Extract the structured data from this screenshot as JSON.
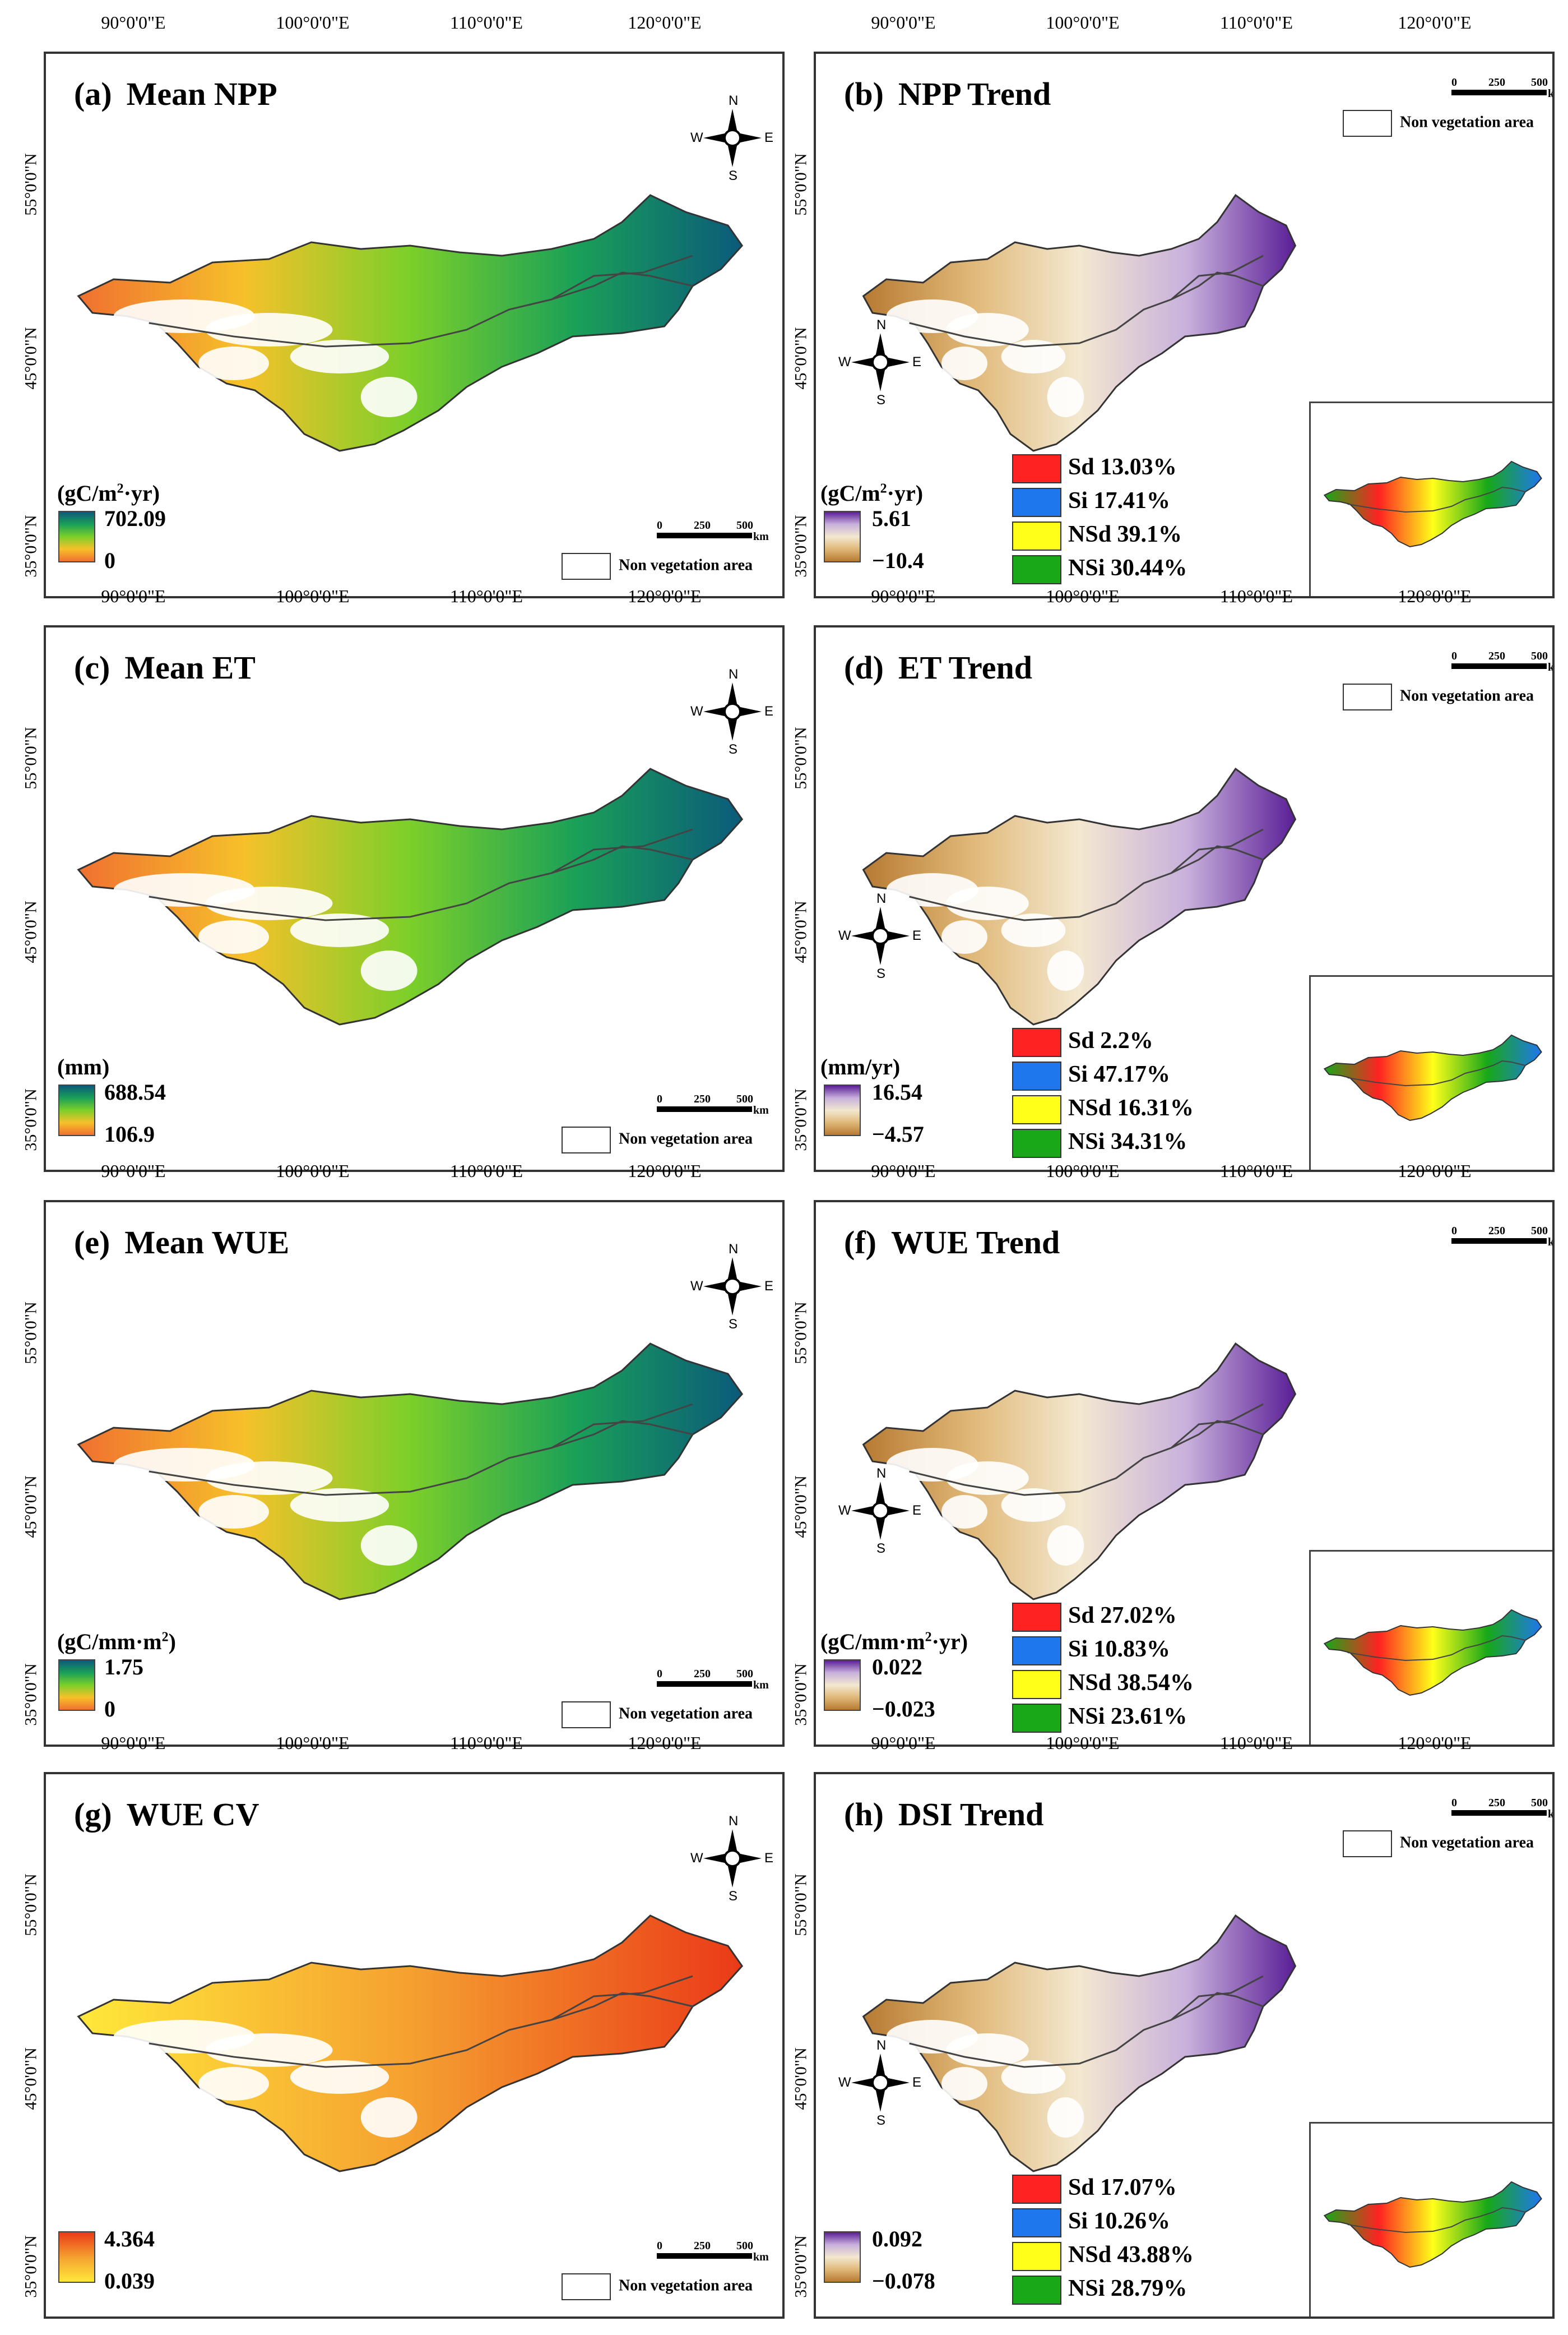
{
  "figure": {
    "longitudes": [
      "90°0'0\"E",
      "100°0'0\"E",
      "110°0'0\"E",
      "120°0'0\"E"
    ],
    "latitudes": [
      "55°0'0\"N",
      "45°0'0\"N",
      "35°0'0\"N"
    ],
    "compass": {
      "n": "N",
      "s": "S",
      "e": "E",
      "w": "W"
    },
    "scale": {
      "zero": "0",
      "mid": "250",
      "max": "500",
      "unit": "km"
    },
    "non_veg_label": "Non vegetation area",
    "panels": [
      {
        "label": "(a)",
        "title": "Mean NPP",
        "unit_html": "(gC/m<sup>2</sup>·yr)",
        "max": "702.09",
        "min": "0",
        "classes": []
      },
      {
        "label": "(b)",
        "title": "NPP Trend",
        "unit_html": "(gC/m<sup>2</sup>·yr)",
        "max": "5.61",
        "min": "−10.4",
        "classes": [
          "Sd 13.03%",
          "Si 17.41%",
          "NSd 39.1%",
          "NSi 30.44%"
        ]
      },
      {
        "label": "(c)",
        "title": "Mean ET",
        "unit_html": "(mm)",
        "max": "688.54",
        "min": "106.9",
        "classes": []
      },
      {
        "label": "(d)",
        "title": "ET Trend",
        "unit_html": "(mm/yr)",
        "max": "16.54",
        "min": "−4.57",
        "classes": [
          "Sd 2.2%",
          "Si 47.17%",
          "NSd 16.31%",
          "NSi 34.31%"
        ]
      },
      {
        "label": "(e)",
        "title": "Mean WUE",
        "unit_html": "(gC/mm·m<sup>2</sup>)",
        "max": "1.75",
        "min": "0",
        "classes": []
      },
      {
        "label": "(f)",
        "title": "WUE Trend",
        "unit_html": "(gC/mm·m<sup>2</sup>·yr)",
        "max": "0.022",
        "min": "−0.023",
        "classes": [
          "Sd 27.02%",
          "Si 10.83%",
          "NSd 38.54%",
          "NSi 23.61%"
        ]
      },
      {
        "label": "(g)",
        "title": "WUE CV",
        "unit_html": "",
        "max": "4.364",
        "min": "0.039",
        "classes": []
      },
      {
        "label": "(h)",
        "title": "DSI Trend",
        "unit_html": "",
        "max": "0.092",
        "min": "−0.078",
        "classes": [
          "Sd 17.07%",
          "Si 10.26%",
          "NSd 43.88%",
          "NSi 28.79%"
        ]
      }
    ]
  },
  "colors": {
    "sd": "#ff2222",
    "si": "#1f77ee",
    "nsd": "#ffff1a",
    "nsi": "#18a818",
    "mean_ramp": [
      "#f07030",
      "#f6c12a",
      "#7ccf2a",
      "#1aa058",
      "#0b5a7a"
    ],
    "trend_ramp": [
      "#b77a32",
      "#e0b878",
      "#f3e8d0",
      "#c8b0dc",
      "#5a1e96"
    ],
    "cv_ramp": [
      "#ffe83a",
      "#f5a030",
      "#ea3a18"
    ]
  }
}
